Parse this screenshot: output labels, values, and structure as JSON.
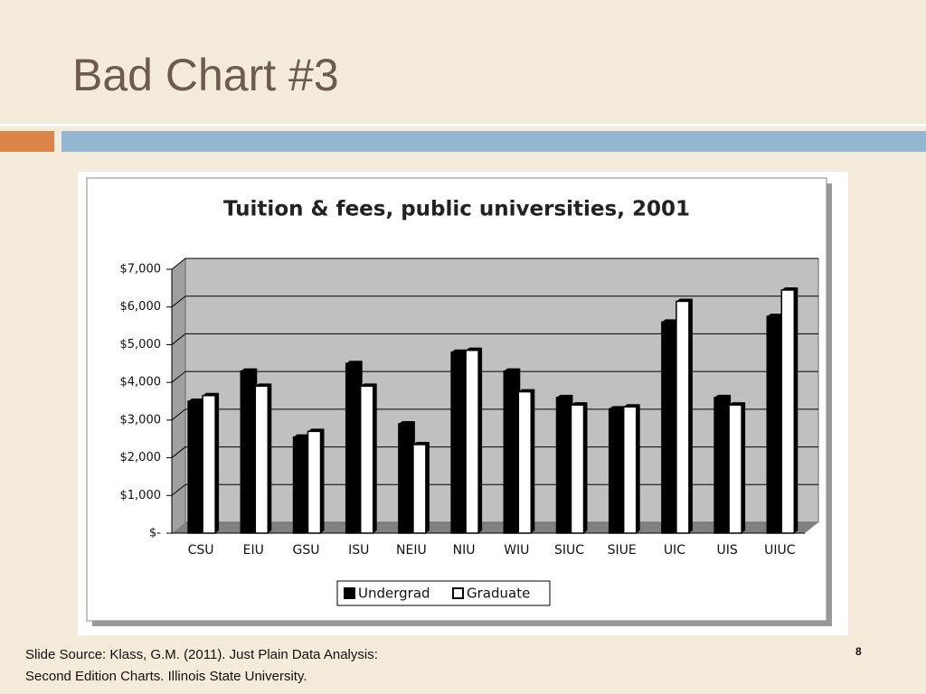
{
  "slide": {
    "title": "Bad Chart #3",
    "source_lines": [
      "Slide Source: Klass, G.M. (2011). Just Plain Data Analysis:",
      "Second Edition Charts. Illinois State University."
    ],
    "page_number": "8"
  },
  "chart_data": {
    "type": "bar",
    "title": "Tuition & fees, public universities, 2001",
    "categories": [
      "CSU",
      "EIU",
      "GSU",
      "ISU",
      "NEIU",
      "NIU",
      "WIU",
      "SIUC",
      "SIUE",
      "UIC",
      "UIS",
      "UIUC"
    ],
    "series": [
      {
        "name": "Undergrad",
        "color": "#000000",
        "values": [
          3500,
          4300,
          2550,
          4500,
          2900,
          4800,
          4300,
          3600,
          3300,
          5600,
          3600,
          5750
        ]
      },
      {
        "name": "Graduate",
        "color": "#ffffff",
        "values": [
          3650,
          3900,
          2700,
          3900,
          2350,
          4850,
          3750,
          3400,
          3350,
          6150,
          3400,
          6450
        ]
      }
    ],
    "ylim": [
      0,
      7000
    ],
    "yticks": [
      {
        "value": 0,
        "label": "$-"
      },
      {
        "value": 1000,
        "label": "$1,000"
      },
      {
        "value": 2000,
        "label": "$2,000"
      },
      {
        "value": 3000,
        "label": "$3,000"
      },
      {
        "value": 4000,
        "label": "$4,000"
      },
      {
        "value": 5000,
        "label": "$5,000"
      },
      {
        "value": 6000,
        "label": "$6,000"
      },
      {
        "value": 7000,
        "label": "$7,000"
      }
    ],
    "grid": true,
    "legend": "bottom"
  }
}
